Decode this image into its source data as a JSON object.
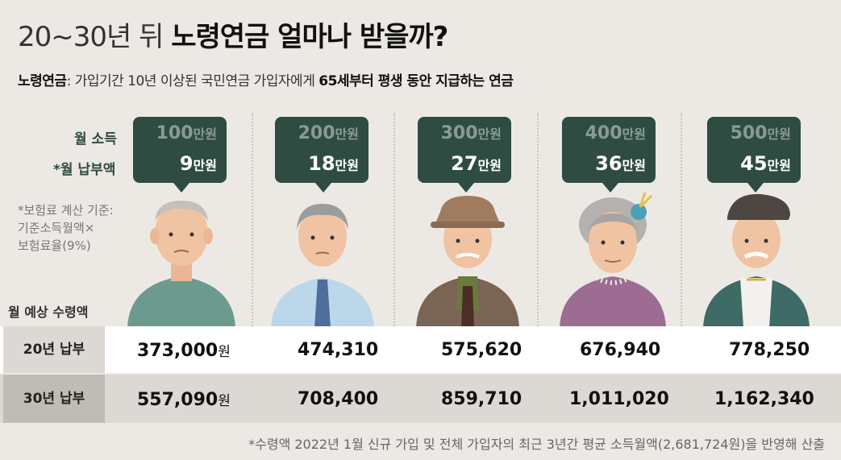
{
  "title": {
    "light": "20~30년 뒤",
    "bold": "노령연금 얼마나 받을까?"
  },
  "subtitle": {
    "term": "노령연금",
    "colon": ": ",
    "text1": "가입기간 10년 이상된 국민연금 가입자에게 ",
    "bold": "65세부터 평생 동안 지급하는 연금"
  },
  "labels": {
    "income": "월 소득",
    "payment": "*월 납부액",
    "note": [
      "*보험료 계산 기준:",
      "기준소득월액×",
      "보험료율(9%)"
    ],
    "receive": "월 예상 수령액"
  },
  "units": {
    "manwon": "만원",
    "won": "원"
  },
  "chart_data": {
    "type": "table",
    "columns": [
      {
        "income": "100",
        "payment": "9",
        "y20": "373,000",
        "y30": "557,090"
      },
      {
        "income": "200",
        "payment": "18",
        "y20": "474,310",
        "y30": "708,400"
      },
      {
        "income": "300",
        "payment": "27",
        "y20": "575,620",
        "y30": "859,710"
      },
      {
        "income": "400",
        "payment": "36",
        "y20": "676,940",
        "y30": "1,011,020"
      },
      {
        "income": "500",
        "payment": "45",
        "y20": "778,250",
        "y30": "1,162,340"
      }
    ],
    "rows": [
      "20년 납부",
      "30년 납부"
    ]
  },
  "footnote": "*수령액 2022년 1월 신규 가입 및 전체 가입자의 최근 3년간 평균 소득월액(2,681,724원)을 반영해 산출",
  "colors": {
    "bubble": "#2f4c42",
    "background": "#ece9e4"
  }
}
